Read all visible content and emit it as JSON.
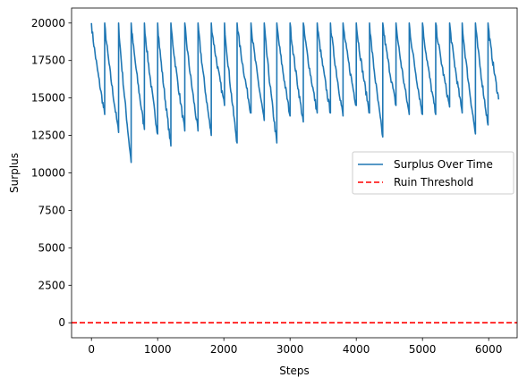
{
  "chart_data": {
    "type": "line",
    "xlabel": "Steps",
    "ylabel": "Surplus",
    "xlim": [
      -300,
      6430
    ],
    "ylim": [
      -1000,
      21000
    ],
    "xticks": [
      0,
      1000,
      2000,
      3000,
      4000,
      5000,
      6000
    ],
    "yticks": [
      0,
      2500,
      5000,
      7500,
      10000,
      12500,
      15000,
      17500,
      20000
    ],
    "grid": false,
    "legend_position": "center-right",
    "series": [
      {
        "name": "Surplus Over Time",
        "color": "#1f77b4",
        "style": "solid",
        "cycle_start": 20000,
        "cycles": [
          {
            "x0": 0,
            "x1": 200,
            "min": 13900
          },
          {
            "x0": 200,
            "x1": 410,
            "min": 12700
          },
          {
            "x0": 410,
            "x1": 600,
            "min": 10700
          },
          {
            "x0": 600,
            "x1": 800,
            "min": 12900
          },
          {
            "x0": 800,
            "x1": 1000,
            "min": 12600
          },
          {
            "x0": 1000,
            "x1": 1200,
            "min": 11800
          },
          {
            "x0": 1200,
            "x1": 1410,
            "min": 12800
          },
          {
            "x0": 1410,
            "x1": 1610,
            "min": 12800
          },
          {
            "x0": 1610,
            "x1": 1810,
            "min": 12500
          },
          {
            "x0": 1810,
            "x1": 2010,
            "min": 14500
          },
          {
            "x0": 2010,
            "x1": 2200,
            "min": 12000
          },
          {
            "x0": 2200,
            "x1": 2410,
            "min": 14000
          },
          {
            "x0": 2410,
            "x1": 2610,
            "min": 13500
          },
          {
            "x0": 2610,
            "x1": 2800,
            "min": 12000
          },
          {
            "x0": 2800,
            "x1": 3000,
            "min": 13800
          },
          {
            "x0": 3000,
            "x1": 3200,
            "min": 13400
          },
          {
            "x0": 3200,
            "x1": 3410,
            "min": 14000
          },
          {
            "x0": 3410,
            "x1": 3610,
            "min": 14000
          },
          {
            "x0": 3610,
            "x1": 3800,
            "min": 13800
          },
          {
            "x0": 3800,
            "x1": 4000,
            "min": 14500
          },
          {
            "x0": 4000,
            "x1": 4200,
            "min": 14000
          },
          {
            "x0": 4200,
            "x1": 4400,
            "min": 12400
          },
          {
            "x0": 4400,
            "x1": 4600,
            "min": 14500
          },
          {
            "x0": 4600,
            "x1": 4800,
            "min": 13900
          },
          {
            "x0": 4800,
            "x1": 5000,
            "min": 13900
          },
          {
            "x0": 5000,
            "x1": 5200,
            "min": 13900
          },
          {
            "x0": 5200,
            "x1": 5410,
            "min": 14400
          },
          {
            "x0": 5410,
            "x1": 5600,
            "min": 14000
          },
          {
            "x0": 5600,
            "x1": 5800,
            "min": 12600
          },
          {
            "x0": 5800,
            "x1": 5990,
            "min": 13200
          },
          {
            "x0": 5990,
            "x1": 6150,
            "min": 14900
          }
        ]
      },
      {
        "name": "Ruin Threshold",
        "color": "#ff0000",
        "style": "dashed",
        "y": 0
      }
    ]
  }
}
